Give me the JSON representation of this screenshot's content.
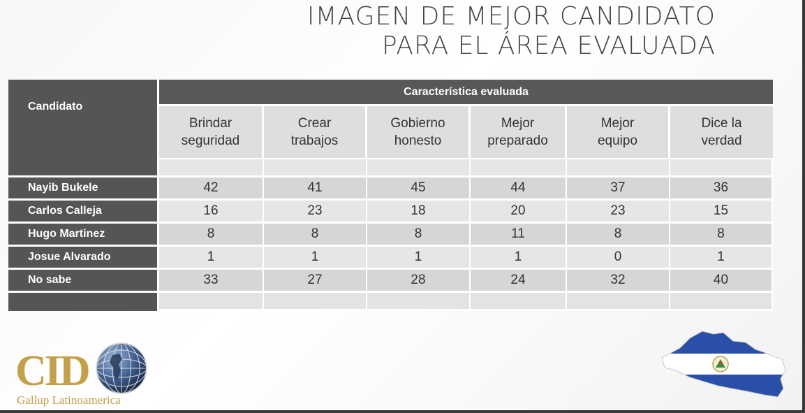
{
  "title": {
    "line1": "IMAGEN DE MEJOR CANDIDATO",
    "line2": "PARA EL ÁREA EVALUADA"
  },
  "table": {
    "candidate_header": "Candidato",
    "group_header": "Característica evaluada",
    "columns": [
      {
        "line1": "Brindar",
        "line2": "seguridad"
      },
      {
        "line1": "Crear",
        "line2": "trabajos"
      },
      {
        "line1": "Gobierno",
        "line2": "honesto"
      },
      {
        "line1": "Mejor",
        "line2": "preparado"
      },
      {
        "line1": "Mejor",
        "line2": "equipo"
      },
      {
        "line1": "Dice la",
        "line2": "verdad"
      }
    ],
    "rows": [
      {
        "name": "Nayib Bukele",
        "values": [
          "42",
          "41",
          "45",
          "44",
          "37",
          "36"
        ]
      },
      {
        "name": "Carlos Calleja",
        "values": [
          "16",
          "23",
          "18",
          "20",
          "23",
          "15"
        ]
      },
      {
        "name": "Hugo Martinez",
        "values": [
          "8",
          "8",
          "8",
          "11",
          "8",
          "8"
        ]
      },
      {
        "name": "Josue Alvarado",
        "values": [
          "1",
          "1",
          "1",
          "1",
          "0",
          "1"
        ]
      },
      {
        "name": "No sabe",
        "values": [
          "33",
          "27",
          "28",
          "24",
          "32",
          "40"
        ]
      }
    ]
  },
  "logo": {
    "text": "CID",
    "subtext": "Gallup Latinoamerica",
    "icon": "globe-icon",
    "color": "#c4a04a"
  },
  "map": {
    "icon": "el-salvador-flag-map-icon",
    "colors": {
      "blue": "#2a4fa8",
      "white": "#ffffff"
    }
  }
}
